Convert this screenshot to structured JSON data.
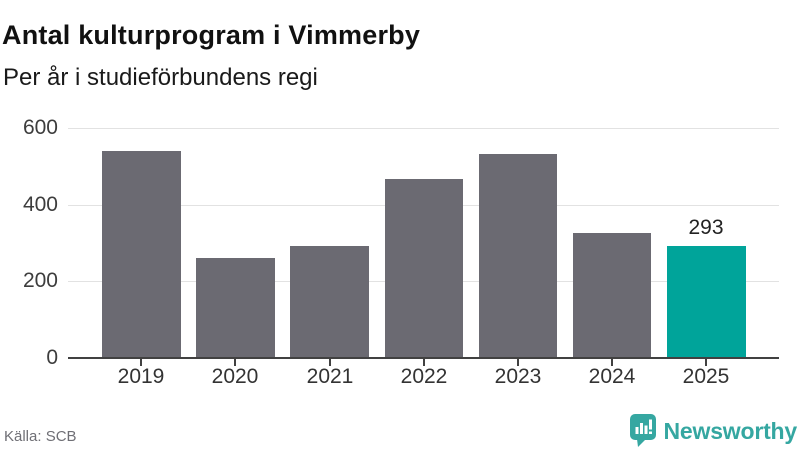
{
  "header": {
    "title": "Antal kulturprogram i Vimmerby",
    "subtitle": "Per år i studieförbundens regi"
  },
  "chart_data": {
    "type": "bar",
    "categories": [
      "2019",
      "2020",
      "2021",
      "2022",
      "2023",
      "2024",
      "2025"
    ],
    "values": [
      539,
      262,
      292,
      466,
      532,
      325,
      293
    ],
    "title": "Antal kulturprogram i Vimmerby",
    "subtitle": "Per år i studieförbundens regi",
    "xlabel": "",
    "ylabel": "",
    "ylim": [
      0,
      600
    ],
    "yticks": [
      "0",
      "200",
      "400",
      "600"
    ],
    "grid": "horizontal-only",
    "legend": "none",
    "bar_color": "#6b6a72",
    "highlight_color": "#00a49a",
    "highlight_index": 6,
    "data_labels": {
      "6": "293"
    }
  },
  "footer": {
    "source": "Källa: SCB",
    "brand": "Newsworthy"
  },
  "colors": {
    "accent_teal": "#00a49a",
    "bar_gray": "#6b6a72",
    "logo_teal": "#35a7a1",
    "gridline": "#e2e2e2",
    "axis": "#414141"
  },
  "icons": {
    "brand_logo": "newsworthy-speech-bubble-barchart-icon"
  }
}
